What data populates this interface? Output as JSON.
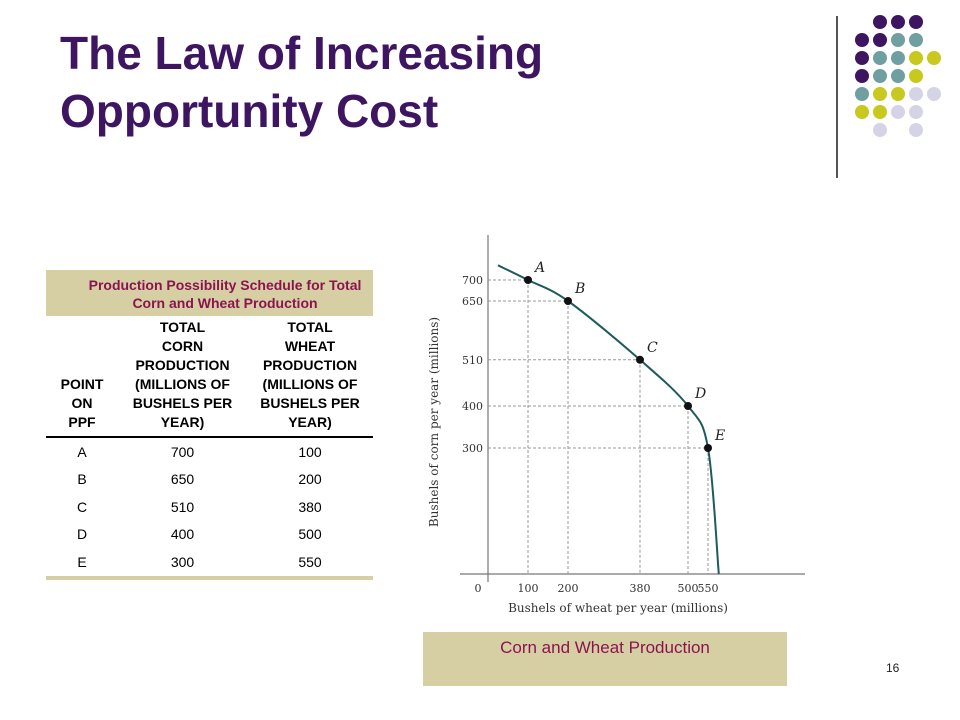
{
  "slide": {
    "title_line1": "The Law of Increasing",
    "title_line2": "Opportunity Cost",
    "page_number": "16",
    "accent_colors": [
      "#3d1560",
      "#6f9fa0",
      "#c8c81e",
      "#d4d4e6"
    ]
  },
  "table": {
    "caption_line1": "Production Possibility Schedule for Total",
    "caption_line2": "Corn and Wheat Production",
    "headers": {
      "point": [
        "POINT",
        "ON",
        "PPF"
      ],
      "corn": [
        "TOTAL",
        "CORN",
        "PRODUCTION",
        "(MILLIONS OF",
        "BUSHELS PER",
        "YEAR)"
      ],
      "wheat": [
        "TOTAL",
        "WHEAT",
        "PRODUCTION",
        "(MILLIONS OF",
        "BUSHELS PER",
        "YEAR)"
      ]
    },
    "rows": [
      {
        "point": "A",
        "corn": "700",
        "wheat": "100"
      },
      {
        "point": "B",
        "corn": "650",
        "wheat": "200"
      },
      {
        "point": "C",
        "corn": "510",
        "wheat": "380"
      },
      {
        "point": "D",
        "corn": "400",
        "wheat": "500"
      },
      {
        "point": "E",
        "corn": "300",
        "wheat": "550"
      }
    ]
  },
  "chart_caption": "Corn and Wheat Production",
  "chart_data": {
    "type": "line",
    "xlabel": "Bushels of wheat per year (millions)",
    "ylabel": "Bushels of corn per year (millions)",
    "x_ticks": [
      "0",
      "100",
      "200",
      "380",
      "500",
      "550"
    ],
    "y_ticks": [
      "700",
      "650",
      "510",
      "400",
      "300"
    ],
    "points": [
      {
        "label": "A",
        "x": 100,
        "y": 700
      },
      {
        "label": "B",
        "x": 200,
        "y": 650
      },
      {
        "label": "C",
        "x": 380,
        "y": 510
      },
      {
        "label": "D",
        "x": 500,
        "y": 400
      },
      {
        "label": "E",
        "x": 550,
        "y": 300
      }
    ],
    "curve_color": "#1e5c5c"
  }
}
